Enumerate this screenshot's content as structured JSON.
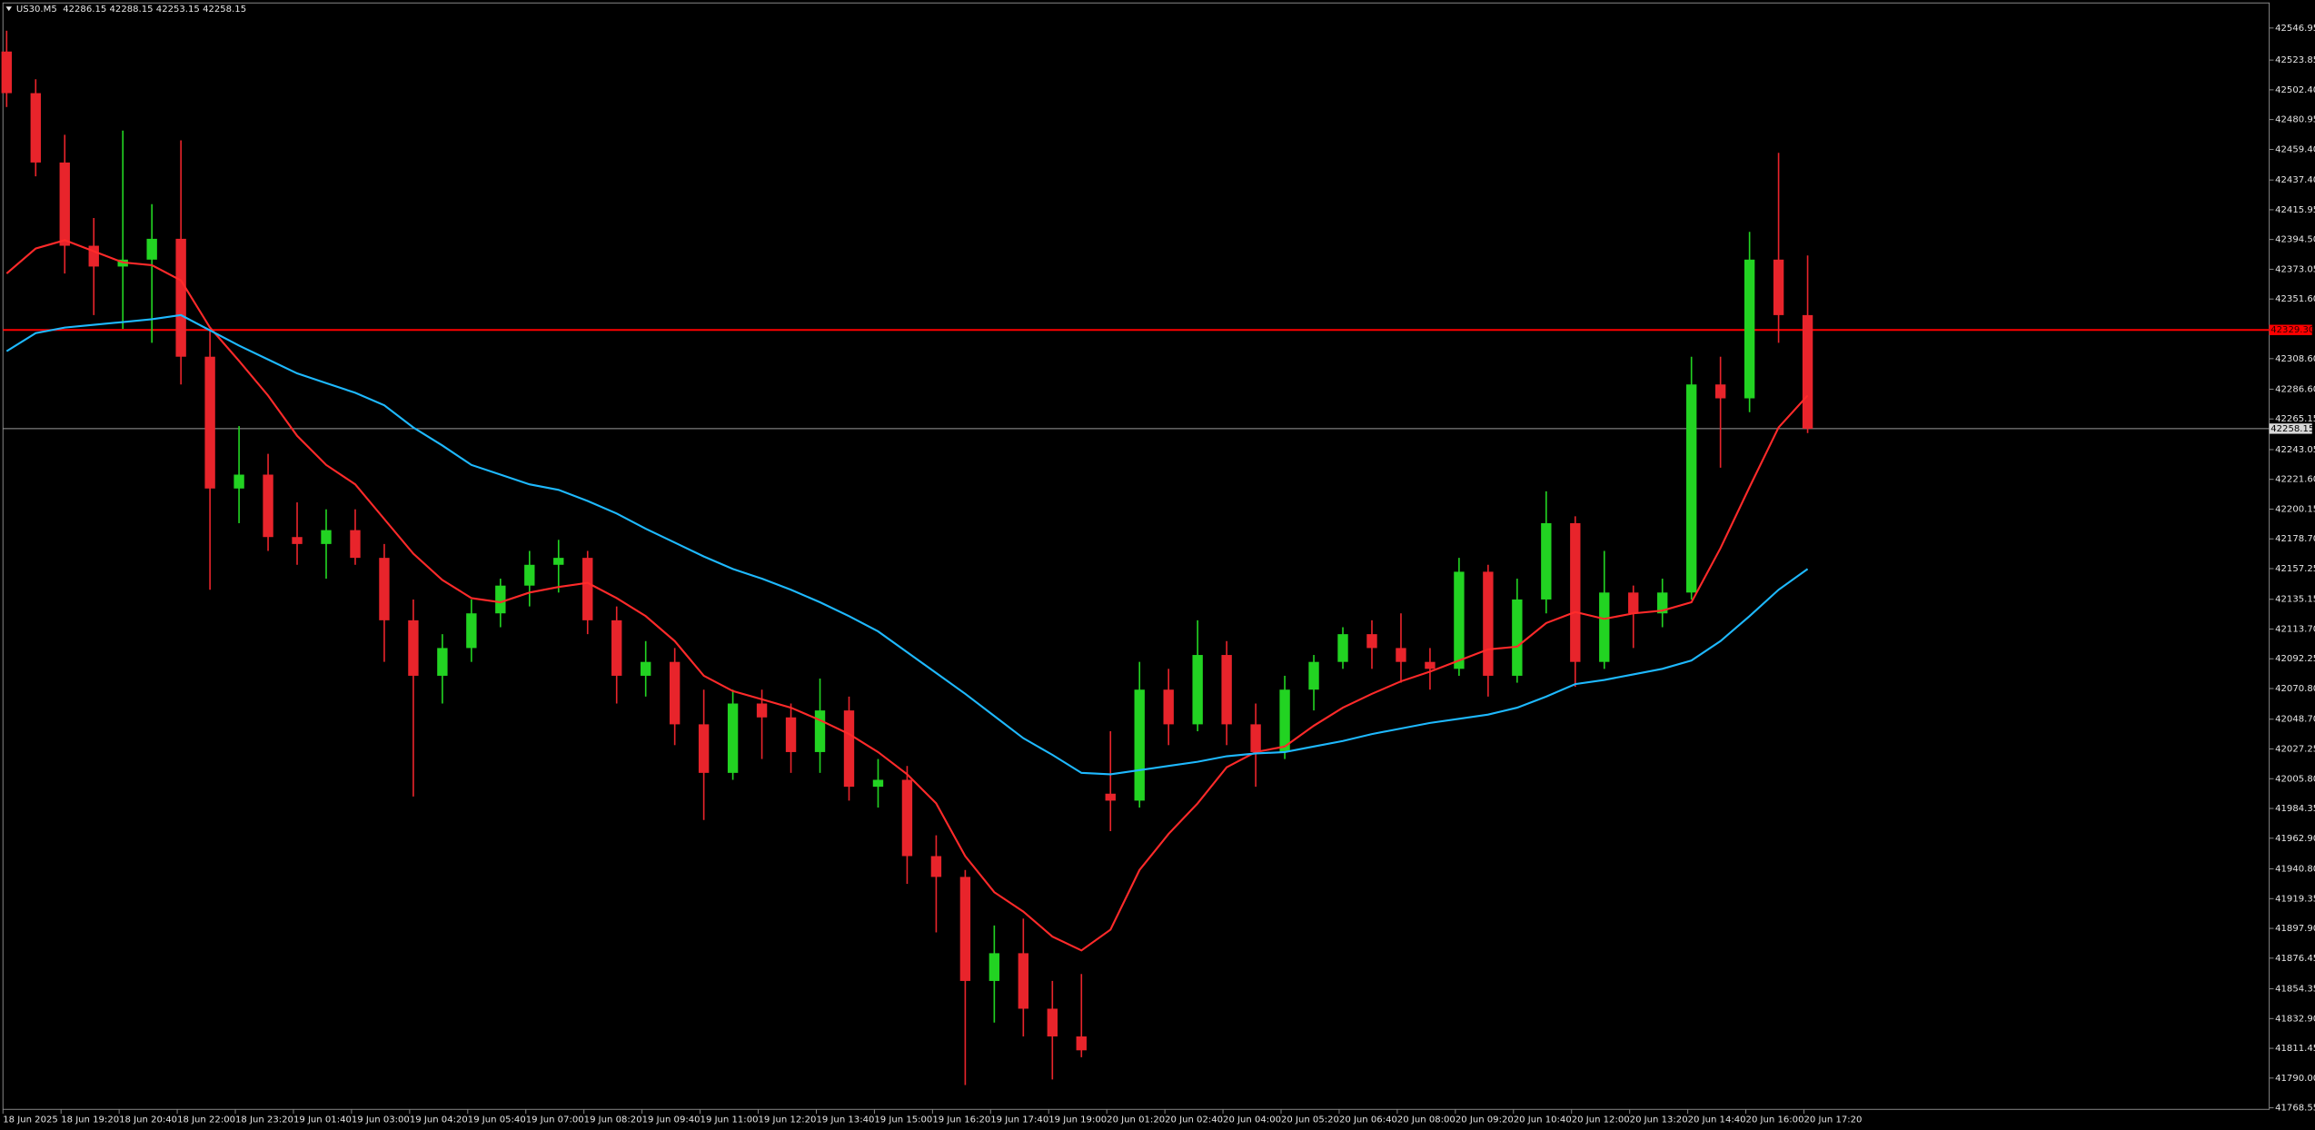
{
  "chart_data": {
    "type": "candlestick",
    "symbol": "US30.M5",
    "header_values": [
      42286.15,
      42288.15,
      42253.15,
      42258.15
    ],
    "categories": [
      "18 Jun 2025",
      null,
      "18 Jun 19:20",
      null,
      "18 Jun 20:40",
      null,
      "18 Jun 22:00",
      null,
      "18 Jun 23:20",
      null,
      "19 Jun 01:40",
      null,
      "19 Jun 03:00",
      null,
      "19 Jun 04:20",
      null,
      "19 Jun 05:40",
      null,
      "19 Jun 07:00",
      null,
      "19 Jun 08:20",
      null,
      "19 Jun 09:40",
      null,
      "19 Jun 11:00",
      null,
      "19 Jun 12:20",
      null,
      "19 Jun 13:40",
      null,
      "19 Jun 15:00",
      null,
      "19 Jun 16:20",
      null,
      "19 Jun 17:40",
      null,
      "19 Jun 19:00",
      null,
      "20 Jun 01:20",
      null,
      "20 Jun 02:40",
      null,
      "20 Jun 04:00",
      null,
      "20 Jun 05:20",
      null,
      "20 Jun 06:40",
      null,
      "20 Jun 08:00",
      null,
      "20 Jun 09:20",
      null,
      "20 Jun 10:40",
      null,
      "20 Jun 12:00",
      null,
      "20 Jun 13:20",
      null,
      "20 Jun 14:40",
      null,
      "20 Jun 16:00",
      null,
      "20 Jun 17:20"
    ],
    "open": [
      42530,
      42500,
      42450,
      42390,
      42375,
      42380,
      42395,
      42310,
      42215,
      42225,
      42180,
      42175,
      42185,
      42165,
      42120,
      42080,
      42100,
      42125,
      42145,
      42160,
      42165,
      42120,
      42080,
      42090,
      42045,
      42010,
      42060,
      42050,
      42025,
      42055,
      42000,
      42005,
      41950,
      41935,
      41860,
      41880,
      41840,
      41820,
      41995,
      41990,
      42070,
      42045,
      42095,
      42045,
      42025,
      42070,
      42090,
      42110,
      42100,
      42090,
      42085,
      42155,
      42080,
      42135,
      42190,
      42090,
      42140,
      42125,
      42140,
      42290,
      42280,
      42380,
      42340
    ],
    "high": [
      42545,
      42510,
      42470,
      42410,
      42473,
      42420,
      42466,
      42330,
      42260,
      42240,
      42205,
      42200,
      42200,
      42175,
      42135,
      42110,
      42135,
      42150,
      42170,
      42178,
      42170,
      42130,
      42105,
      42100,
      42070,
      42070,
      42070,
      42060,
      42078,
      42065,
      42020,
      42015,
      41965,
      41940,
      41900,
      41905,
      41860,
      41865,
      42040,
      42090,
      42085,
      42120,
      42105,
      42060,
      42080,
      42095,
      42115,
      42120,
      42125,
      42100,
      42165,
      42160,
      42150,
      42213,
      42195,
      42170,
      42145,
      42150,
      42310,
      42310,
      42400,
      42457,
      42383
    ],
    "low": [
      42490,
      42440,
      42370,
      42340,
      42330,
      42320,
      42290,
      42142,
      42190,
      42170,
      42160,
      42150,
      42160,
      42090,
      41993,
      42060,
      42090,
      42115,
      42130,
      42140,
      42110,
      42060,
      42065,
      42030,
      41976,
      42005,
      42020,
      42010,
      42010,
      41990,
      41985,
      41930,
      41895,
      41785,
      41830,
      41820,
      41789,
      41805,
      41968,
      41985,
      42030,
      42040,
      42030,
      42000,
      42020,
      42055,
      42085,
      42085,
      42075,
      42070,
      42080,
      42065,
      42075,
      42125,
      42072,
      42085,
      42100,
      42115,
      42135,
      42230,
      42270,
      42320,
      42255
    ],
    "close": [
      42500,
      42450,
      42390,
      42375,
      42380,
      42395,
      42310,
      42215,
      42225,
      42180,
      42175,
      42185,
      42165,
      42120,
      42080,
      42100,
      42125,
      42145,
      42160,
      42165,
      42120,
      42080,
      42090,
      42045,
      42010,
      42060,
      42050,
      42025,
      42055,
      42000,
      42005,
      41950,
      41935,
      41860,
      41880,
      41840,
      41820,
      41810,
      41990,
      42070,
      42045,
      42095,
      42045,
      42025,
      42070,
      42090,
      42110,
      42100,
      42090,
      42085,
      42155,
      42080,
      42135,
      42190,
      42090,
      42140,
      42125,
      42140,
      42290,
      42280,
      42380,
      42340,
      42258.15
    ],
    "up_color": "#22d322",
    "down_color": "#e8242b",
    "overlays": [
      {
        "color": "#ff2a2a",
        "values": [
          42370,
          42388,
          42394,
          42386,
          42378,
          42376,
          42365,
          42331,
          42307,
          42282,
          42253,
          42232,
          42218,
          42193,
          42168,
          42149,
          42136,
          42133,
          42140,
          42144,
          42147,
          42136,
          42123,
          42105,
          42080,
          42069,
          42063,
          42057,
          42048,
          42038,
          42025,
          42009,
          41988,
          41950,
          41924,
          41910,
          41892,
          41882,
          41897,
          41940,
          41966,
          41988,
          42014,
          42025,
          42029,
          42044,
          42057,
          42067,
          42076,
          42083,
          42091,
          42099,
          42101,
          42118,
          42126,
          42121,
          42125,
          42127,
          42133,
          42172,
          42216,
          42259,
          42282
        ]
      },
      {
        "color": "#1eb9ff",
        "values": [
          42314,
          42327,
          42331,
          42333,
          42335,
          42337,
          42340,
          42329,
          42318,
          42308,
          42298,
          42291,
          42284,
          42275,
          42259,
          42246,
          42232,
          42225,
          42218,
          42214,
          42206,
          42197,
          42186,
          42176,
          42166,
          42157,
          42150,
          42142,
          42133,
          42123,
          42112,
          42097,
          42082,
          42067,
          42051,
          42035,
          42023,
          42010,
          42009,
          42012,
          42015,
          42018,
          42022,
          42024,
          42025,
          42029,
          42033,
          42038,
          42042,
          42046,
          42049,
          42052,
          42057,
          42065,
          42074,
          42077,
          42081,
          42085,
          42091,
          42105,
          42123,
          42142,
          42157
        ]
      }
    ],
    "price_lines": [
      {
        "value": 42329.3,
        "label": "42329.30",
        "color": "#ff0000"
      },
      {
        "value": 42258.15,
        "color": "#9a9a9a"
      }
    ],
    "ylim": [
      41767.45,
      42565.02
    ],
    "yticks": [
      42546.95,
      42523.85,
      {
        "value": 42502.4,
        "label": "42502.40"
      },
      42480.95,
      {
        "value": 42459.4,
        "label": "42459.40"
      },
      {
        "value": 42437.4,
        "label": "42437.40"
      },
      42415.95,
      {
        "value": 42394.5,
        "label": "42394.50"
      },
      42373.05,
      {
        "value": 42351.6,
        "label": "42351.60"
      },
      {
        "value": 42308.6,
        "label": "42308.60"
      },
      {
        "value": 42286.6,
        "label": "42286.60"
      },
      42265.15,
      42243.05,
      {
        "value": 42221.6,
        "label": "42221.60"
      },
      42200.15,
      {
        "value": 42178.7,
        "label": "42178.70"
      },
      42157.25,
      42135.15,
      {
        "value": 42113.7,
        "label": "42113.70"
      },
      42092.25,
      {
        "value": 42070.8,
        "label": "42070.80"
      },
      {
        "value": 42048.7,
        "label": "42048.70"
      },
      42027.25,
      {
        "value": 42005.8,
        "label": "42005.80"
      },
      41984.35,
      {
        "value": 41962.9,
        "label": "41962.90"
      },
      {
        "value": 41940.8,
        "label": "41940.80"
      },
      41919.35,
      {
        "value": 41897.9,
        "label": "41897.90"
      },
      41876.45,
      41854.35,
      {
        "value": 41832.9,
        "label": "41832.90"
      },
      41811.45,
      {
        "value": 41790,
        "label": "41790.00"
      },
      41768.55
    ]
  }
}
